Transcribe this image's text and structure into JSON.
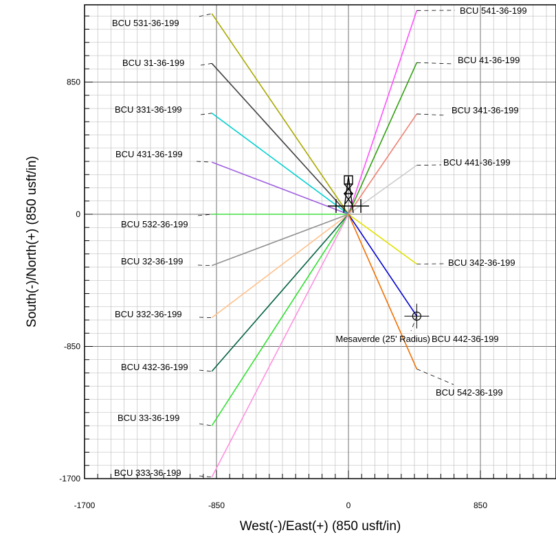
{
  "chart_data": {
    "type": "line",
    "xlabel": "West(-)/East(+) (850 usft/in)",
    "ylabel": "South(-)/North(+) (850 usft/in)",
    "xlim": [
      -1700,
      1330
    ],
    "ylim": [
      -1700,
      1340
    ],
    "xticks": [
      "-1700",
      "-850",
      "0",
      "850"
    ],
    "yticks": [
      "-1700",
      "-850",
      "0",
      "850"
    ],
    "grid": true,
    "surface_origin": [
      0,
      0
    ],
    "rig_symbol": "drilling-rig-icon",
    "wells": [
      {
        "name": "BCU 531-36-199",
        "color": "#a8a800",
        "points": [
          [
            0,
            0
          ],
          [
            -880,
            1290
          ]
        ]
      },
      {
        "name": "BCU 31-36-199",
        "color": "#404040",
        "points": [
          [
            0,
            0
          ],
          [
            -880,
            970
          ]
        ]
      },
      {
        "name": "BCU 331-36-199",
        "color": "#00d0d0",
        "points": [
          [
            0,
            0
          ],
          [
            -880,
            650
          ]
        ]
      },
      {
        "name": "BCU 431-36-199",
        "color": "#a060e0",
        "points": [
          [
            0,
            0
          ],
          [
            -880,
            335
          ]
        ]
      },
      {
        "name": "BCU 532-36-199",
        "color": "#40e040",
        "points": [
          [
            0,
            0
          ],
          [
            -880,
            0
          ]
        ]
      },
      {
        "name": "BCU 32-36-199",
        "color": "#909090",
        "points": [
          [
            0,
            0
          ],
          [
            -880,
            -330
          ]
        ]
      },
      {
        "name": "BCU 332-36-199",
        "color": "#ffc08a",
        "points": [
          [
            0,
            0
          ],
          [
            -880,
            -665
          ]
        ]
      },
      {
        "name": "BCU 432-36-199",
        "color": "#006040",
        "points": [
          [
            0,
            0
          ],
          [
            -880,
            -1010
          ]
        ]
      },
      {
        "name": "BCU 33-36-199",
        "color": "#30e030",
        "points": [
          [
            0,
            0
          ],
          [
            -880,
            -1360
          ]
        ]
      },
      {
        "name": "BCU 333-36-199",
        "color": "#ff90e0",
        "points": [
          [
            0,
            0
          ],
          [
            -880,
            -1690
          ]
        ]
      },
      {
        "name": "BCU 541-36-199",
        "color": "#ff50ff",
        "points": [
          [
            0,
            0
          ],
          [
            440,
            1310
          ]
        ]
      },
      {
        "name": "BCU 41-36-199",
        "color": "#30a010",
        "points": [
          [
            0,
            0
          ],
          [
            440,
            975
          ]
        ]
      },
      {
        "name": "BCU 341-36-199",
        "color": "#f08070",
        "points": [
          [
            0,
            0
          ],
          [
            440,
            645
          ]
        ]
      },
      {
        "name": "BCU 441-36-199",
        "color": "#cccccc",
        "points": [
          [
            0,
            0
          ],
          [
            440,
            315
          ]
        ]
      },
      {
        "name": "BCU 342-36-199",
        "color": "#e0e000",
        "points": [
          [
            0,
            0
          ],
          [
            440,
            -320
          ]
        ]
      },
      {
        "name": "BCU 442-36-199",
        "color": "#0000d0",
        "points": [
          [
            0,
            0
          ],
          [
            440,
            -655
          ]
        ]
      },
      {
        "name": "BCU 542-36-199",
        "color": "#f07000",
        "points": [
          [
            0,
            0
          ],
          [
            440,
            -995
          ]
        ]
      }
    ],
    "annotations": [
      {
        "text": "Mesaverde (25' Radius)",
        "target": [
          440,
          -655
        ]
      }
    ]
  }
}
